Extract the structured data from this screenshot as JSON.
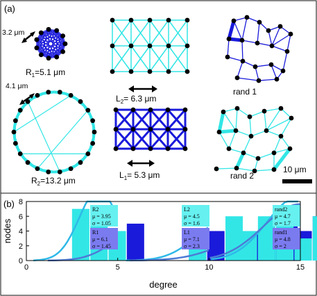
{
  "panel_a": {
    "label": "(a)",
    "circle_small": {
      "arrow_label": "3.2 μm",
      "name_main": "R",
      "name_sub": "1",
      "value_text": "=5.1 μm"
    },
    "circle_large": {
      "arrow_label": "4.1 μm",
      "name_main": "R",
      "name_sub": "2",
      "value_text": "=13.2 μm"
    },
    "grid_light": {
      "name_main": "L",
      "name_sub": "2",
      "value_text": "= 6.3 μm"
    },
    "grid_dark": {
      "name_main": "L",
      "name_sub": "1",
      "value_text": "= 5.3 μm"
    },
    "rand1": {
      "label": "rand 1"
    },
    "rand2": {
      "label": "rand 2"
    },
    "scale_bar": {
      "label": "10 μm"
    }
  },
  "panel_b": {
    "label": "(b)",
    "chart_data": {
      "type": "bar",
      "ylabel": "nodes",
      "xlabel": "degree",
      "xlim": [
        0,
        15
      ],
      "ylim": [
        0,
        8
      ],
      "x_ticks": [
        0,
        5,
        10,
        15
      ],
      "y_ticks": [
        0,
        2,
        4,
        6,
        8
      ],
      "colors": {
        "light": "#33e6e6",
        "dark": "#1a1adb",
        "light_box": "#66f0f0",
        "dark_box": "#7b7bf0"
      },
      "subplots": [
        {
          "series": [
            {
              "name": "R2",
              "color": "light",
              "bins": [
                [
                  3,
                  7
                ],
                [
                  4,
                  5.5
                ],
                [
                  5,
                  4
                ]
              ],
              "mu": "3.95",
              "sigma": "1.05"
            },
            {
              "name": "R1",
              "color": "dark",
              "bins": [
                [
                  5,
                  4
                ],
                [
                  6,
                  5
                ]
              ],
              "mu": "6.1",
              "sigma": "1.45"
            }
          ]
        },
        {
          "series": [
            {
              "name": "L2",
              "color": "light",
              "bins": [
                [
                  3,
                  4
                ],
                [
                  5,
                  6
                ],
                [
                  7,
                  4
                ]
              ],
              "mu": "4.5",
              "sigma": "1.6"
            },
            {
              "name": "L1",
              "color": "dark",
              "bins": [
                [
                  3,
                  4
                ],
                [
                  4,
                  4
                ],
                [
                  6,
                  4
                ],
                [
                  8,
                  5
                ]
              ],
              "mu": "7.1",
              "sigma": "2.3"
            }
          ]
        },
        {
          "series": [
            {
              "name": "rand2",
              "color": "light",
              "bins": [
                [
                  2,
                  4
                ],
                [
                  3,
                  6
                ],
                [
                  4,
                  5
                ],
                [
                  5,
                  3
                ],
                [
                  6,
                  6
                ]
              ],
              "mu": "4.7",
              "sigma": "1.7"
            },
            {
              "name": "rand1",
              "color": "dark",
              "bins": [
                [
                  3,
                  4
                ],
                [
                  4,
                  5
                ],
                [
                  5,
                  4
                ],
                [
                  6,
                  6
                ],
                [
                  7,
                  6
                ]
              ],
              "mu": "4.8",
              "sigma": "2"
            }
          ]
        }
      ]
    }
  }
}
